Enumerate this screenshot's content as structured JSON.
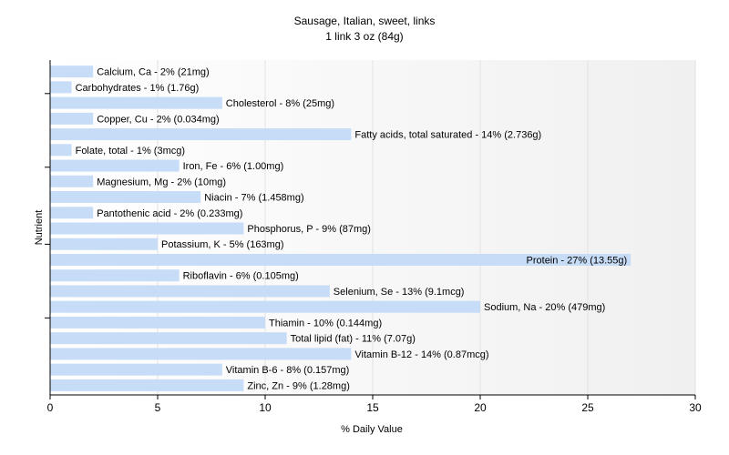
{
  "chart_data": {
    "type": "bar",
    "orientation": "horizontal",
    "title": "Sausage, Italian, sweet, links",
    "subtitle": "1 link 3 oz (84g)",
    "xlabel": "% Daily Value",
    "ylabel": "Nutrient",
    "xlim": [
      0,
      30
    ],
    "xticks": [
      0,
      5,
      10,
      15,
      20,
      25,
      30
    ],
    "grid": true,
    "bar_color": "#c6dcf7",
    "categories": [
      "Calcium, Ca",
      "Carbohydrates",
      "Cholesterol",
      "Copper, Cu",
      "Fatty acids, total saturated",
      "Folate, total",
      "Iron, Fe",
      "Magnesium, Mg",
      "Niacin",
      "Pantothenic acid",
      "Phosphorus, P",
      "Potassium, K",
      "Protein",
      "Riboflavin",
      "Selenium, Se",
      "Sodium, Na",
      "Thiamin",
      "Total lipid (fat)",
      "Vitamin B-12",
      "Vitamin B-6",
      "Zinc, Zn"
    ],
    "values": [
      2,
      1,
      8,
      2,
      14,
      1,
      6,
      2,
      7,
      2,
      9,
      5,
      27,
      6,
      13,
      20,
      10,
      11,
      14,
      8,
      9
    ],
    "labels": [
      "Calcium, Ca - 2% (21mg)",
      "Carbohydrates - 1% (1.76g)",
      "Cholesterol - 8% (25mg)",
      "Copper, Cu - 2% (0.034mg)",
      "Fatty acids, total saturated - 14% (2.736g)",
      "Folate, total - 1% (3mcg)",
      "Iron, Fe - 6% (1.00mg)",
      "Magnesium, Mg - 2% (10mg)",
      "Niacin - 7% (1.458mg)",
      "Pantothenic acid - 2% (0.233mg)",
      "Phosphorus, P - 9% (87mg)",
      "Potassium, K - 5% (163mg)",
      "Protein - 27% (13.55g)",
      "Riboflavin - 6% (0.105mg)",
      "Selenium, Se - 13% (9.1mcg)",
      "Sodium, Na - 20% (479mg)",
      "Thiamin - 10% (0.144mg)",
      "Total lipid (fat) - 11% (7.07g)",
      "Vitamin B-12 - 14% (0.87mcg)",
      "Vitamin B-6 - 8% (0.157mg)",
      "Zinc, Zn - 9% (1.28mg)"
    ]
  }
}
